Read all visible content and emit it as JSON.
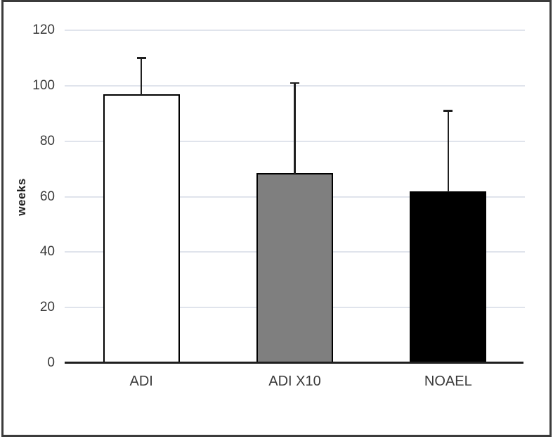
{
  "figure": {
    "frame_color": "#3b3b3b",
    "background_color": "#ffffff"
  },
  "chart_data": {
    "type": "bar",
    "title": "",
    "xlabel": "",
    "ylabel": "weeks",
    "categories": [
      "ADI",
      "ADI X10",
      "NOAEL"
    ],
    "values": [
      97,
      68.5,
      62
    ],
    "error_plus": [
      13,
      32.5,
      29
    ],
    "error_tops": [
      110,
      101,
      91
    ],
    "bar_colors": [
      "#ffffff",
      "#7f7f7f",
      "#000000"
    ],
    "bar_border_color": "#000000",
    "ylim": [
      0,
      120
    ],
    "yticks": [
      0,
      20,
      40,
      60,
      80,
      100,
      120
    ],
    "grid": true,
    "gridline_color": "#e0e4ec",
    "axis_line_color": "#1f1f1f",
    "error_bar_color": "#1f1f1f",
    "tick_label_color": "#3a3a3a",
    "legend": "none"
  }
}
